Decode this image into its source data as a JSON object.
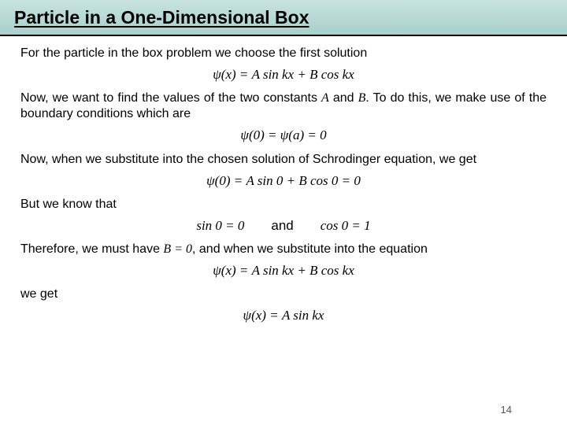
{
  "header": {
    "title": "Particle in a One-Dimensional Box",
    "background_gradient": [
      "#c8e2e0",
      "#b8dad6",
      "#a8d0cc"
    ],
    "underline": true,
    "title_fontsize": 23
  },
  "body_fontsize": 16,
  "eq_fontsize": 17,
  "paragraphs": {
    "p1": "For the particle in the box problem we choose the first solution",
    "p2_pre": "Now, we want to find the values of the two constants ",
    "p2_A": "A",
    "p2_mid": " and ",
    "p2_B": "B",
    "p2_post": ".   To do this, we make use of the boundary conditions which are",
    "p3": "Now, when we substitute into the chosen solution of Schrodinger equation, we get",
    "p4": "But we know that",
    "p5_pre": "Therefore, we must have ",
    "p5_eq": "B = 0",
    "p5_post": ", and when we substitute into the equation",
    "p6": "we get"
  },
  "equations": {
    "eq1": "ψ(x) = A sin kx + B cos kx",
    "eq2": "ψ(0) = ψ(a) = 0",
    "eq3": "ψ(0) = A sin 0 + B cos 0 = 0",
    "eq4_left": "sin 0 = 0",
    "eq4_mid": "and",
    "eq4_right": "cos 0 = 1",
    "eq5": "ψ(x) = A sin kx + B cos kx",
    "eq6": "ψ(x) = A sin kx"
  },
  "page_number": "14",
  "colors": {
    "text": "#000000",
    "background": "#ffffff",
    "pagenum": "#555555"
  }
}
